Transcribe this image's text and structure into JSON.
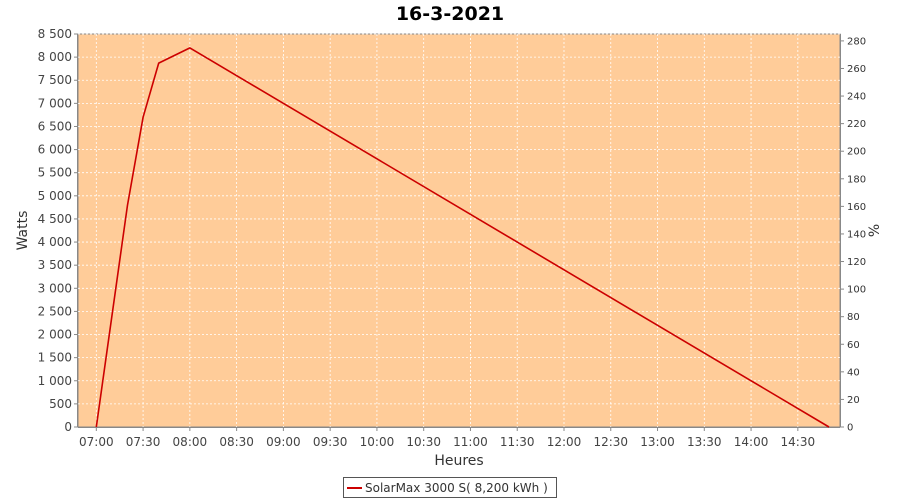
{
  "chart_data": {
    "type": "line",
    "title": "16-3-2021",
    "xlabel": "Heures",
    "ylabel": "Watts",
    "y2label": "%",
    "x_ticks": [
      "07:00",
      "07:30",
      "08:00",
      "08:30",
      "09:00",
      "09:30",
      "10:00",
      "10:30",
      "11:00",
      "11:30",
      "12:00",
      "12:30",
      "13:00",
      "13:30",
      "14:00",
      "14:30"
    ],
    "y_ticks": [
      "0",
      "500",
      "1 000",
      "1 500",
      "2 000",
      "2 500",
      "3 000",
      "3 500",
      "4 000",
      "4 500",
      "5 000",
      "5 500",
      "6 000",
      "6 500",
      "7 000",
      "7 500",
      "8 000",
      "8 500"
    ],
    "y2_ticks": [
      "0",
      "20",
      "40",
      "60",
      "80",
      "100",
      "120",
      "140",
      "160",
      "180",
      "200",
      "220",
      "240",
      "260",
      "280"
    ],
    "ylim": [
      0,
      8500
    ],
    "y2lim": [
      0,
      285
    ],
    "grid": true,
    "legend_position": "bottom-center",
    "colors": {
      "plot_background": "#ffcc99",
      "series": "#cc0000",
      "grid": "#ffffff"
    },
    "series": [
      {
        "name": "SolarMax 3000 S( 8,200 kWh )",
        "x": [
          "07:00",
          "07:20",
          "07:30",
          "07:40",
          "08:00",
          "14:50"
        ],
        "y": [
          0,
          4800,
          6700,
          7870,
          8200,
          0
        ]
      }
    ]
  }
}
